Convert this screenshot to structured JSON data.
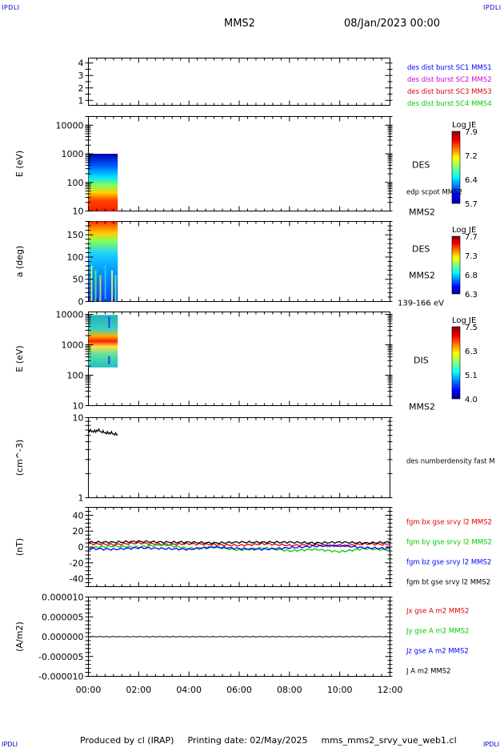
{
  "header": {
    "corner_label": "IPDLI",
    "title": "MMS2",
    "datetime": "08/Jan/2023 00:00"
  },
  "footer": {
    "produced_by": "Produced by cl (IRAP)",
    "printing_date": "Printing date: 02/May/2025",
    "file": "mms_mms2_srvy_vue_web1.cl"
  },
  "colors": {
    "mms1": "#0000ff",
    "mms2": "#d000d0",
    "mms3": "#e00000",
    "mms4": "#00cc00",
    "bx": "#e00000",
    "by": "#00cc00",
    "bz": "#0000ff",
    "bt": "#000000"
  },
  "chart_data": [
    {
      "type": "table",
      "panel": "burst-availability",
      "y_ticks": [
        "4",
        "3",
        "2",
        "1"
      ],
      "ylim": [
        0.6,
        4.4
      ],
      "legend": [
        {
          "text": "des dist burst SC1 MMS1",
          "color": "#0000ff"
        },
        {
          "text": "des dist burst SC2 MMS2",
          "color": "#d000d0"
        },
        {
          "text": "des dist burst SC3 MMS3",
          "color": "#e00000"
        },
        {
          "text": "des dist burst SC4 MMS4",
          "color": "#00cc00"
        }
      ]
    },
    {
      "type": "heatmap",
      "panel": "des-energy",
      "ylabel": "E (eV)",
      "y_scale": "log",
      "ylim": [
        10,
        20000
      ],
      "y_ticks": [
        "10000",
        "1000",
        "100",
        "10"
      ],
      "data_x_range": [
        "00:00",
        "01:10"
      ],
      "data_y_range": [
        10,
        1000
      ],
      "species": "DES",
      "extra_label": "edp scpot MMS2",
      "bottom_label": "MMS2",
      "colorbar": {
        "title": "Log JE",
        "ticks": [
          "7.9",
          "7.2",
          "6.4",
          "5.7"
        ],
        "min": 5.7,
        "max": 7.9
      }
    },
    {
      "type": "heatmap",
      "panel": "des-pitch-angle",
      "ylabel": "a (deg)",
      "ylim": [
        0,
        180
      ],
      "y_ticks": [
        "150",
        "100",
        "50",
        "0"
      ],
      "data_x_range": [
        "00:00",
        "01:10"
      ],
      "species": "DES",
      "spacecraft": "MMS2",
      "energy_range": "139-166 eV",
      "colorbar": {
        "title": "Log JE",
        "ticks": [
          "7.7",
          "7.3",
          "6.8",
          "6.3"
        ],
        "min": 6.3,
        "max": 7.7
      }
    },
    {
      "type": "heatmap",
      "panel": "dis-energy",
      "ylabel": "E (eV)",
      "y_scale": "log",
      "ylim": [
        10,
        12000
      ],
      "y_ticks": [
        "10000",
        "1000",
        "100",
        "10"
      ],
      "data_x_range": [
        "00:00",
        "01:10"
      ],
      "data_y_range": [
        180,
        9500
      ],
      "species": "DIS",
      "bottom_label": "MMS2",
      "colorbar": {
        "title": "Log JE",
        "ticks": [
          "7.5",
          "6.3",
          "5.1",
          "4.0"
        ],
        "min": 4.0,
        "max": 7.5
      }
    },
    {
      "type": "line",
      "panel": "density",
      "ylabel": "(cm^-3)",
      "y_scale": "log",
      "ylim": [
        1,
        10
      ],
      "y_ticks": [
        "10",
        "1"
      ],
      "series": [
        {
          "name": "des numberdensity fast M",
          "color": "#000000",
          "x": [
            "00:00",
            "00:10",
            "00:20",
            "00:30",
            "00:40",
            "00:50",
            "01:00",
            "01:10"
          ],
          "values": [
            6.9,
            6.8,
            7.0,
            6.7,
            6.5,
            6.5,
            6.3,
            6.2
          ]
        }
      ]
    },
    {
      "type": "line",
      "panel": "magnetic-field",
      "ylabel": "(nT)",
      "ylim": [
        -50,
        50
      ],
      "y_ticks": [
        "40",
        "20",
        "0",
        "-20",
        "-40"
      ],
      "x": [
        "00:00",
        "01:00",
        "02:00",
        "03:00",
        "04:00",
        "05:00",
        "06:00",
        "07:00",
        "08:00",
        "09:00",
        "10:00",
        "11:00",
        "12:00"
      ],
      "series": [
        {
          "name": "fgm bx gse srvy l2 MMS2",
          "color": "#e00000",
          "values": [
            4,
            3,
            5,
            3,
            4,
            3,
            2,
            4,
            2,
            3,
            1,
            4,
            3
          ]
        },
        {
          "name": "fgm by gse srvy l2 MMS2",
          "color": "#00cc00",
          "values": [
            -1,
            1,
            0,
            3,
            -2,
            0,
            -4,
            -1,
            -5,
            -3,
            -6,
            -2,
            -4
          ]
        },
        {
          "name": "fgm bz gse srvy l2 MMS2",
          "color": "#0000ff",
          "values": [
            -2,
            -3,
            -1,
            -2,
            -3,
            0,
            -2,
            -3,
            -1,
            1,
            2,
            -1,
            -2
          ]
        },
        {
          "name": "fgm bt gse srvy l2 MMS2",
          "color": "#000000",
          "values": [
            6,
            6,
            7,
            6,
            6,
            5,
            6,
            6,
            6,
            5,
            6,
            5,
            6
          ]
        }
      ]
    },
    {
      "type": "line",
      "panel": "current-density",
      "ylabel": "(A/m2)",
      "ylim": [
        -1e-05,
        1e-05
      ],
      "y_ticks": [
        "0.000010",
        "0.000005",
        "0.000000",
        "-0.000005",
        "-0.000010"
      ],
      "series": [
        {
          "name": "Jx gse A m2 MMS2",
          "color": "#e00000",
          "values": [
            0,
            0
          ]
        },
        {
          "name": "Jy gse A m2 MMS2",
          "color": "#00cc00",
          "values": [
            0,
            0
          ]
        },
        {
          "name": "Jz gse A m2 MMS2",
          "color": "#0000ff",
          "values": [
            0,
            0
          ]
        },
        {
          "name": "J A m2 MMS2",
          "color": "#000000",
          "values": [
            0,
            0
          ]
        }
      ]
    },
    {
      "type": "time-axis",
      "panel": "shared-x-axis",
      "x_ticks": [
        "00:00",
        "02:00",
        "04:00",
        "06:00",
        "08:00",
        "10:00",
        "12:00"
      ],
      "xlim": [
        "00:00",
        "12:00"
      ]
    }
  ]
}
